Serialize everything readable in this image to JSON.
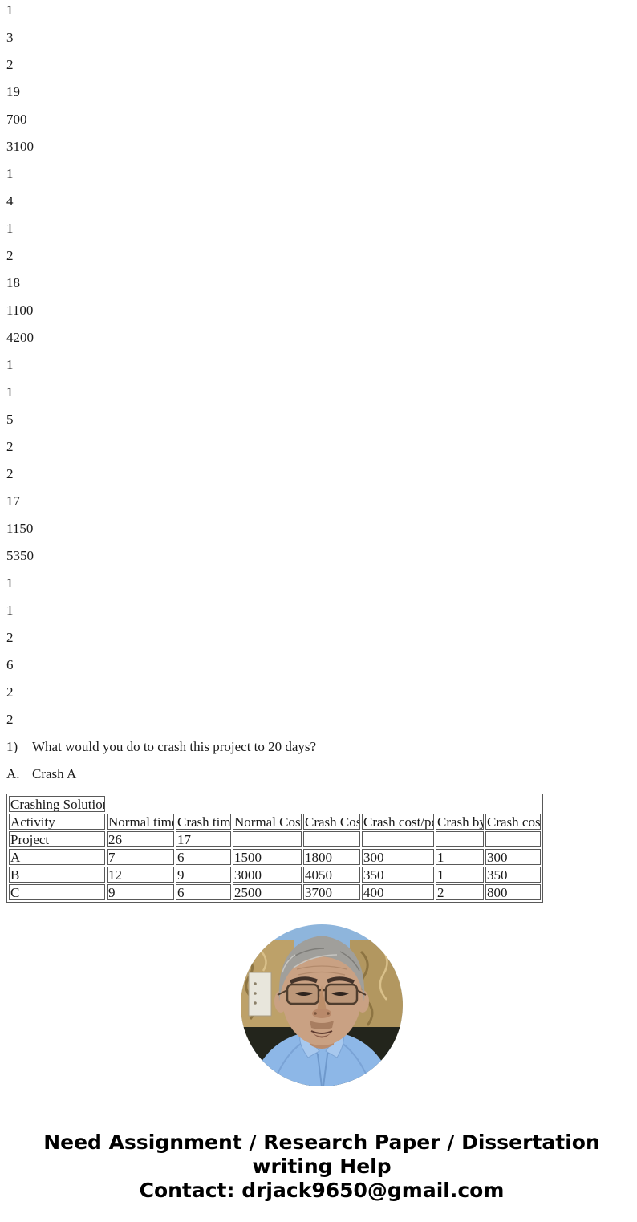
{
  "page": {
    "background": "#ffffff",
    "text_color": "#1a1a1a"
  },
  "numbers": [
    "1",
    "3",
    "2",
    "19",
    "700",
    "3100",
    "1",
    "4",
    "1",
    "2",
    "18",
    "1100",
    "4200",
    "1",
    "1",
    "5",
    "2",
    "2",
    "17",
    "1150",
    "5350",
    "1",
    "1",
    "2",
    "6",
    "2",
    "2"
  ],
  "question": {
    "label": "1)",
    "text": "What would you do to crash this project to 20 days?"
  },
  "answer": {
    "label": "A.",
    "text": "Crash A"
  },
  "table": {
    "title": "Crashing Solution",
    "headers": [
      "Activity",
      "Normal time",
      "Crash time",
      "Normal Cost",
      "Crash Cost",
      "Crash cost/pd",
      "Crash by",
      "Crash cost"
    ],
    "rows": [
      [
        "Project",
        "26",
        "17",
        "",
        "",
        "",
        "",
        ""
      ],
      [
        "A",
        "7",
        "6",
        "1500",
        "1800",
        "300",
        "1",
        "300"
      ],
      [
        "B",
        "12",
        "9",
        "3000",
        "4050",
        "350",
        "1",
        "350"
      ],
      [
        "C",
        "9",
        "6",
        "2500",
        "3700",
        "400",
        "2",
        "800"
      ]
    ]
  },
  "portrait": {
    "description": "circular photo of elderly man with gray hair and glasses wearing light blue shirt",
    "sky_color": "#8eb5dc",
    "wall_color": "#bda169",
    "wall_color_right": "#b29760",
    "dark_band_color": "#23251c",
    "shirt_color": "#8db7e7",
    "skin_color": "#c9a183",
    "hair_color": "#a09f9b"
  },
  "footer": {
    "lines": [
      "Need Assignment / Research Paper / Dissertation",
      "writing Help",
      "Contact: drjack9650@gmail.com"
    ],
    "email": "drjack9650@gmail.com"
  }
}
